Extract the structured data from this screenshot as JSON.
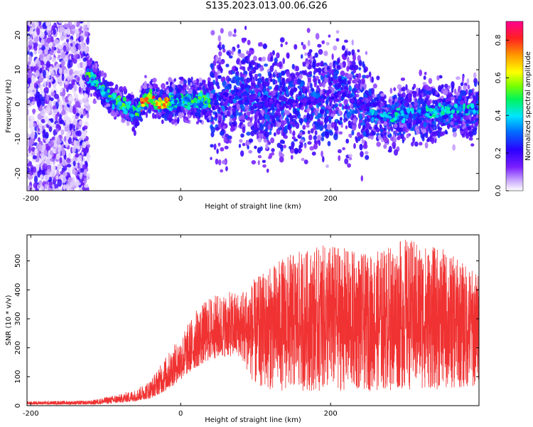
{
  "title": "S135.2023.013.00.06.G26",
  "chart_data": [
    {
      "type": "heatmap",
      "xlabel": "Height of straight line (km)",
      "ylabel": "Frequency (Hz)",
      "xlim": [
        -205,
        398
      ],
      "ylim": [
        -25,
        24
      ],
      "xticks": [
        -200,
        0,
        200
      ],
      "yticks": [
        -20,
        -10,
        0,
        10,
        20
      ],
      "colorbar": {
        "label": "Normalized spectral amplitude",
        "range": [
          0,
          0.9
        ],
        "ticks": [
          0.0,
          0.2,
          0.4,
          0.6,
          0.8
        ],
        "colormap": "rainbow"
      },
      "ridge": {
        "x": [
          -125,
          -110,
          -100,
          -90,
          -80,
          -70,
          -60,
          -50,
          -40,
          -30,
          -20,
          -10,
          0,
          20,
          40,
          60,
          80,
          100,
          120,
          150,
          180,
          200,
          220,
          240,
          260,
          280,
          300,
          330,
          360,
          398
        ],
        "freq": [
          9,
          6,
          3,
          1,
          0,
          -1,
          -3,
          1,
          2,
          0,
          0,
          1,
          1,
          1,
          1,
          2,
          3,
          1,
          0,
          0,
          1,
          2,
          3,
          0,
          -3,
          -4,
          -3,
          -2,
          -2,
          -1
        ]
      }
    },
    {
      "type": "line",
      "xlabel": "Height of straight line (km)",
      "ylabel": "SNR (10 * v/v)",
      "xlim": [
        -205,
        398
      ],
      "ylim": [
        0,
        590
      ],
      "xticks": [
        -200,
        0,
        200
      ],
      "yticks": [
        0,
        100,
        200,
        300,
        400,
        500
      ],
      "color": "#f03232",
      "series": [
        {
          "x": [
            -205,
            -150,
            -120,
            -100,
            -80,
            -60,
            -40,
            -20,
            0,
            20,
            40,
            60,
            80,
            100,
            140,
            200,
            250,
            300,
            350,
            398
          ],
          "lower": [
            4,
            4,
            4,
            6,
            10,
            15,
            25,
            50,
            90,
            130,
            160,
            170,
            170,
            60,
            50,
            50,
            50,
            55,
            55,
            60
          ],
          "upper": [
            15,
            17,
            18,
            30,
            40,
            55,
            90,
            170,
            240,
            330,
            380,
            390,
            400,
            440,
            520,
            560,
            520,
            580,
            540,
            460
          ]
        }
      ]
    }
  ]
}
